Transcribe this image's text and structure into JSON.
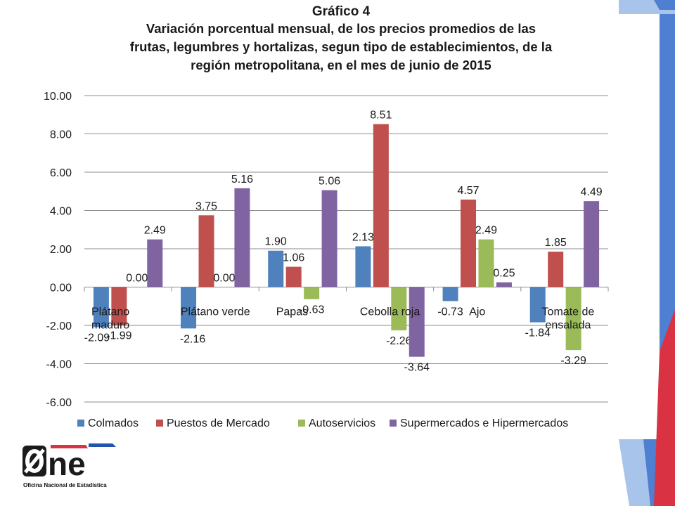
{
  "title": "Gráfico 4",
  "subtitle": "Variación porcentual mensual, de los precios promedios de las\nfrutas, legumbres y hortalizas, segun tipo de establecimientos,  de la\nregión metropolitana,  en el mes de junio de 2015",
  "logo": {
    "mark": "One",
    "tagline": "Oficina Nacional de Estadística"
  },
  "colors": {
    "Colmados": "#4f81bd",
    "Puestos de Mercado": "#c0504d",
    "Autoservicios": "#9bbb59",
    "Supermercados e Hipermercados": "#8064a2",
    "deco_light_blue": "#a8c4ea",
    "deco_blue": "#4f7fd0",
    "deco_red": "#d93343"
  },
  "chart_data": {
    "type": "bar",
    "title": "Gráfico 4",
    "categories": [
      "Plátano maduro",
      "Plátano verde",
      "Papas",
      "Cebolla roja",
      "Ajo",
      "Tomate de ensalada"
    ],
    "series": [
      {
        "name": "Colmados",
        "values": [
          -2.09,
          -2.16,
          1.9,
          2.13,
          -0.73,
          -1.84
        ],
        "labels": [
          "-2.09",
          "-2.16",
          "1.90",
          "2.13",
          "-0.73",
          "-1.84"
        ]
      },
      {
        "name": "Puestos de Mercado",
        "values": [
          -1.99,
          3.75,
          1.06,
          8.51,
          4.57,
          1.85
        ],
        "labels": [
          "-1.99",
          "3.75",
          "1.06",
          "8.51",
          "4.57",
          "1.85"
        ]
      },
      {
        "name": "Autoservicios",
        "values": [
          0.0,
          0.0,
          -0.63,
          -2.26,
          2.49,
          -3.29
        ],
        "labels": [
          "0.00",
          "0.00",
          "-0.63",
          "-2.26",
          "2.49",
          "-3.29"
        ]
      },
      {
        "name": "Supermercados e Hipermercados",
        "values": [
          2.49,
          5.16,
          5.06,
          -3.64,
          0.25,
          4.49
        ],
        "labels": [
          "2.49",
          "5.16",
          "5.06",
          "-3.64",
          "0.25",
          "4.49"
        ]
      }
    ],
    "ylim": [
      -6,
      10
    ],
    "yticks": [
      "-6.00",
      "-4.00",
      "-2.00",
      "0.00",
      "2.00",
      "4.00",
      "6.00",
      "8.00",
      "10.00"
    ],
    "grid": true,
    "legend_position": "bottom"
  }
}
